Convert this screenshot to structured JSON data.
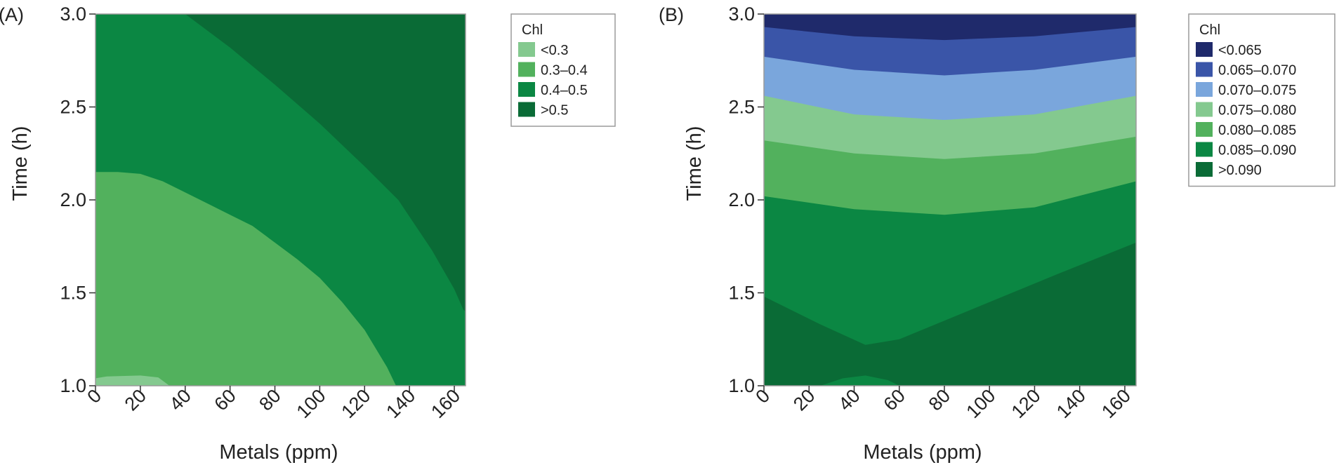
{
  "colors": {
    "panelA": {
      "<0.3": "#84c98f",
      "0.3-0.4": "#52b15d",
      "0.4-0.5": "#0b8743",
      ">0.5": "#0a6b36"
    },
    "panelB": {
      "<0.065": "#1f2a6b",
      "0.065-0.070": "#3a55a8",
      "0.070-0.075": "#7aa6dc",
      "0.075-0.080": "#84c98f",
      "0.080-0.085": "#52b15d",
      "0.085-0.090": "#0b8743",
      ">0.090": "#0a6b36"
    }
  },
  "chart_data": [
    {
      "panel_label": "(A)",
      "type": "contour",
      "xlabel": "Metals (ppm)",
      "ylabel": "Time (h)",
      "xlim": [
        0,
        165
      ],
      "ylim": [
        1.0,
        3.0
      ],
      "x_ticks": [
        "0",
        "20",
        "40",
        "60",
        "80",
        "100",
        "120",
        "140",
        "160"
      ],
      "y_ticks": [
        "1.0",
        "1.5",
        "2.0",
        "2.5",
        "3.0"
      ],
      "legend": {
        "title": "Chl",
        "entries": [
          {
            "label": "<0.3",
            "color_key": "<0.3"
          },
          {
            "label": "0.3–0.4",
            "color_key": "0.3-0.4"
          },
          {
            "label": "0.4–0.5",
            "color_key": "0.4-0.5"
          },
          {
            "label": ">0.5",
            "color_key": ">0.5"
          }
        ]
      },
      "regions": [
        {
          "level": "0.4-0.5",
          "boundary": [
            [
              0,
              1.0
            ],
            [
              165,
              1.0
            ],
            [
              165,
              3.0
            ],
            [
              0,
              3.0
            ]
          ]
        },
        {
          "level": ">0.5",
          "boundary": [
            [
              40,
              3.0
            ],
            [
              60,
              2.82
            ],
            [
              80,
              2.62
            ],
            [
              100,
              2.41
            ],
            [
              120,
              2.18
            ],
            [
              135,
              2.0
            ],
            [
              150,
              1.73
            ],
            [
              160,
              1.52
            ],
            [
              164,
              1.41
            ],
            [
              165,
              1.4
            ],
            [
              165,
              3.0
            ]
          ]
        },
        {
          "level": "0.3-0.4",
          "boundary": [
            [
              0,
              1.0
            ],
            [
              0,
              2.15
            ],
            [
              10,
              2.15
            ],
            [
              20,
              2.14
            ],
            [
              30,
              2.1
            ],
            [
              40,
              2.04
            ],
            [
              50,
              1.98
            ],
            [
              60,
              1.92
            ],
            [
              70,
              1.86
            ],
            [
              80,
              1.77
            ],
            [
              90,
              1.68
            ],
            [
              100,
              1.58
            ],
            [
              110,
              1.45
            ],
            [
              120,
              1.3
            ],
            [
              130,
              1.1
            ],
            [
              134,
              1.0
            ]
          ]
        },
        {
          "level": "<0.3",
          "boundary": [
            [
              0,
              1.0
            ],
            [
              0,
              1.04
            ],
            [
              5,
              1.05
            ],
            [
              20,
              1.055
            ],
            [
              28,
              1.045
            ],
            [
              33,
              1.0
            ]
          ]
        }
      ]
    },
    {
      "panel_label": "(B)",
      "type": "contour",
      "xlabel": "Metals (ppm)",
      "ylabel": "Time (h)",
      "xlim": [
        0,
        165
      ],
      "ylim": [
        1.0,
        3.0
      ],
      "x_ticks": [
        "0",
        "20",
        "40",
        "60",
        "80",
        "100",
        "120",
        "140",
        "160"
      ],
      "y_ticks": [
        "1.0",
        "1.5",
        "2.0",
        "2.5",
        "3.0"
      ],
      "legend": {
        "title": "Chl",
        "entries": [
          {
            "label": "<0.065",
            "color_key": "<0.065"
          },
          {
            "label": "0.065–0.070",
            "color_key": "0.065-0.070"
          },
          {
            "label": "0.070–0.075",
            "color_key": "0.070-0.075"
          },
          {
            "label": "0.075–0.080",
            "color_key": "0.075-0.080"
          },
          {
            "label": "0.080–0.085",
            "color_key": "0.080-0.085"
          },
          {
            "label": "0.085–0.090",
            "color_key": "0.085-0.090"
          },
          {
            "label": ">0.090",
            "color_key": ">0.090"
          }
        ]
      },
      "boundaries": [
        {
          "between": [
            "<0.065",
            "0.065-0.070"
          ],
          "points": [
            [
              0,
              2.93
            ],
            [
              40,
              2.88
            ],
            [
              80,
              2.86
            ],
            [
              120,
              2.88
            ],
            [
              165,
              2.93
            ]
          ]
        },
        {
          "between": [
            "0.065-0.070",
            "0.070-0.075"
          ],
          "points": [
            [
              0,
              2.77
            ],
            [
              40,
              2.7
            ],
            [
              80,
              2.67
            ],
            [
              120,
              2.7
            ],
            [
              165,
              2.77
            ]
          ]
        },
        {
          "between": [
            "0.070-0.075",
            "0.075-0.080"
          ],
          "points": [
            [
              0,
              2.56
            ],
            [
              40,
              2.46
            ],
            [
              80,
              2.43
            ],
            [
              120,
              2.46
            ],
            [
              165,
              2.56
            ]
          ]
        },
        {
          "between": [
            "0.075-0.080",
            "0.080-0.085"
          ],
          "points": [
            [
              0,
              2.32
            ],
            [
              40,
              2.25
            ],
            [
              80,
              2.22
            ],
            [
              120,
              2.25
            ],
            [
              165,
              2.34
            ]
          ]
        },
        {
          "between": [
            "0.080-0.085",
            "0.085-0.090"
          ],
          "points": [
            [
              0,
              2.02
            ],
            [
              40,
              1.95
            ],
            [
              80,
              1.92
            ],
            [
              120,
              1.96
            ],
            [
              165,
              2.1
            ]
          ]
        },
        {
          "between": [
            "0.085-0.090",
            ">0.090"
          ],
          "points": [
            [
              0,
              1.48
            ],
            [
              25,
              1.33
            ],
            [
              45,
              1.22
            ],
            [
              60,
              1.25
            ],
            [
              90,
              1.4
            ],
            [
              130,
              1.6
            ],
            [
              165,
              1.77
            ]
          ]
        }
      ],
      "islands": [
        {
          "level": "0.085-0.090",
          "boundary": [
            [
              25,
              1.0
            ],
            [
              35,
              1.04
            ],
            [
              45,
              1.055
            ],
            [
              55,
              1.03
            ],
            [
              60,
              1.0
            ]
          ]
        }
      ]
    }
  ]
}
